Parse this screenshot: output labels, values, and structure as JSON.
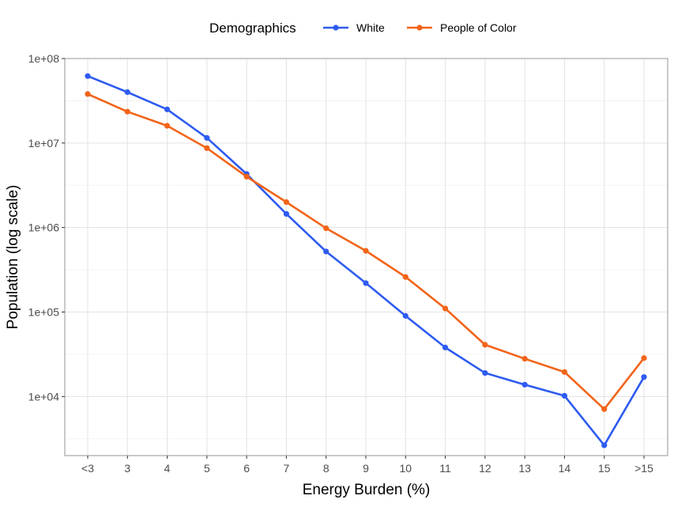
{
  "chart_data": {
    "type": "line",
    "xlabel": "Energy Burden (%)",
    "ylabel": "Population (log scale)",
    "yscale": "log",
    "ylim": [
      2000,
      100000000
    ],
    "y_ticks": [
      {
        "value": 10000,
        "label": "1e+04"
      },
      {
        "value": 100000,
        "label": "1e+05"
      },
      {
        "value": 1000000,
        "label": "1e+06"
      },
      {
        "value": 10000000,
        "label": "1e+07"
      },
      {
        "value": 100000000,
        "label": "1e+08"
      }
    ],
    "categories": [
      "<3",
      "3",
      "4",
      "5",
      "6",
      "7",
      "8",
      "9",
      "10",
      "11",
      "12",
      "13",
      "14",
      "15",
      ">15"
    ],
    "legend": {
      "title": "Demographics",
      "placement": "top"
    },
    "grid": true,
    "series": [
      {
        "name": "White",
        "color": "#2e5bf0",
        "values": [
          62000000,
          40000000,
          25000000,
          11500000,
          4300000,
          1450000,
          520000,
          220000,
          90000,
          38000,
          19000,
          13800,
          10200,
          2650,
          17000
        ]
      },
      {
        "name": "People of Color",
        "color": "#f26419",
        "values": [
          38000000,
          23500000,
          16000000,
          8700000,
          4000000,
          2000000,
          980000,
          530000,
          260000,
          110000,
          41000,
          28000,
          19500,
          7100,
          28500
        ]
      }
    ]
  }
}
